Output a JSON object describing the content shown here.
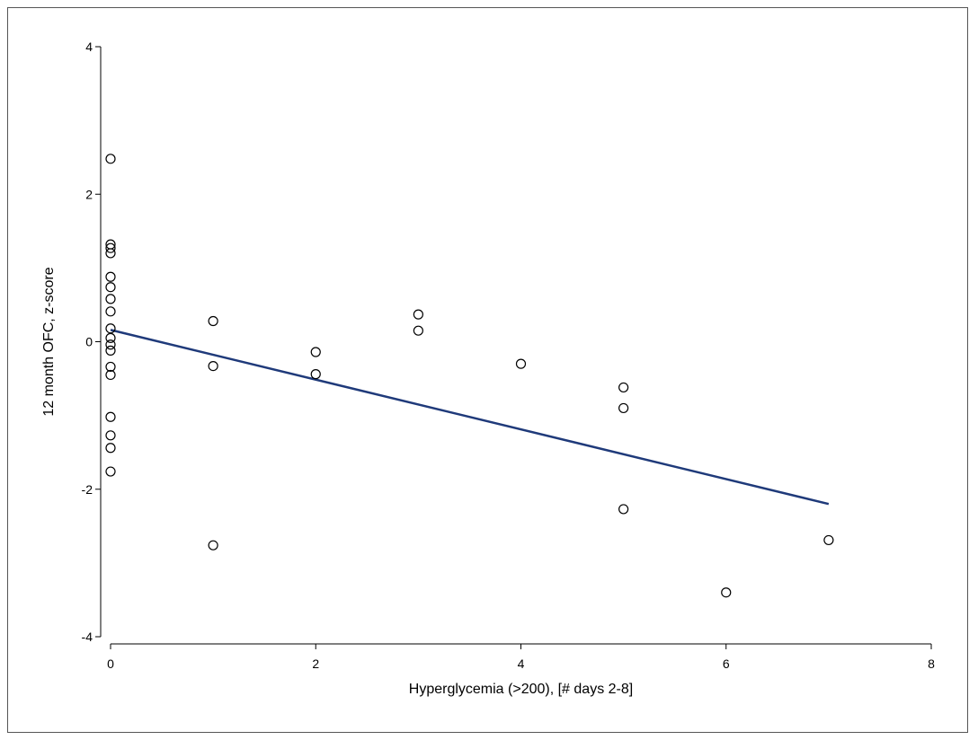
{
  "chart_data": {
    "type": "scatter",
    "title": "",
    "xlabel": "Hyperglycemia (>200), [# days 2-8]",
    "ylabel": "12 month OFC, z-score",
    "xlim": [
      0,
      8
    ],
    "ylim": [
      -4,
      4
    ],
    "x_ticks": [
      0,
      2,
      4,
      6,
      8
    ],
    "y_ticks": [
      -4,
      -2,
      0,
      2,
      4
    ],
    "grid": false,
    "legend": "none",
    "colors": {
      "points": "#000000",
      "fit_line": "#1f3a7a",
      "axes": "#000000"
    },
    "points": [
      {
        "x": 0,
        "y": 2.48
      },
      {
        "x": 0,
        "y": 1.32
      },
      {
        "x": 0,
        "y": 1.27
      },
      {
        "x": 0,
        "y": 1.2
      },
      {
        "x": 0,
        "y": 0.88
      },
      {
        "x": 0,
        "y": 0.74
      },
      {
        "x": 0,
        "y": 0.58
      },
      {
        "x": 0,
        "y": 0.41
      },
      {
        "x": 0,
        "y": 0.18
      },
      {
        "x": 0,
        "y": 0.05
      },
      {
        "x": 0,
        "y": -0.04
      },
      {
        "x": 0,
        "y": -0.12
      },
      {
        "x": 0,
        "y": -0.34
      },
      {
        "x": 0,
        "y": -0.45
      },
      {
        "x": 0,
        "y": -1.02
      },
      {
        "x": 0,
        "y": -1.27
      },
      {
        "x": 0,
        "y": -1.44
      },
      {
        "x": 0,
        "y": -1.76
      },
      {
        "x": 1,
        "y": 0.28
      },
      {
        "x": 1,
        "y": -0.33
      },
      {
        "x": 1,
        "y": -2.76
      },
      {
        "x": 2,
        "y": -0.14
      },
      {
        "x": 2,
        "y": -0.44
      },
      {
        "x": 3,
        "y": 0.37
      },
      {
        "x": 3,
        "y": 0.15
      },
      {
        "x": 4,
        "y": -0.3
      },
      {
        "x": 5,
        "y": -0.62
      },
      {
        "x": 5,
        "y": -0.9
      },
      {
        "x": 5,
        "y": -2.27
      },
      {
        "x": 6,
        "y": -3.4
      },
      {
        "x": 7,
        "y": -2.69
      }
    ],
    "fit_line": {
      "x": [
        0,
        7
      ],
      "y": [
        0.16,
        -2.2
      ]
    }
  }
}
